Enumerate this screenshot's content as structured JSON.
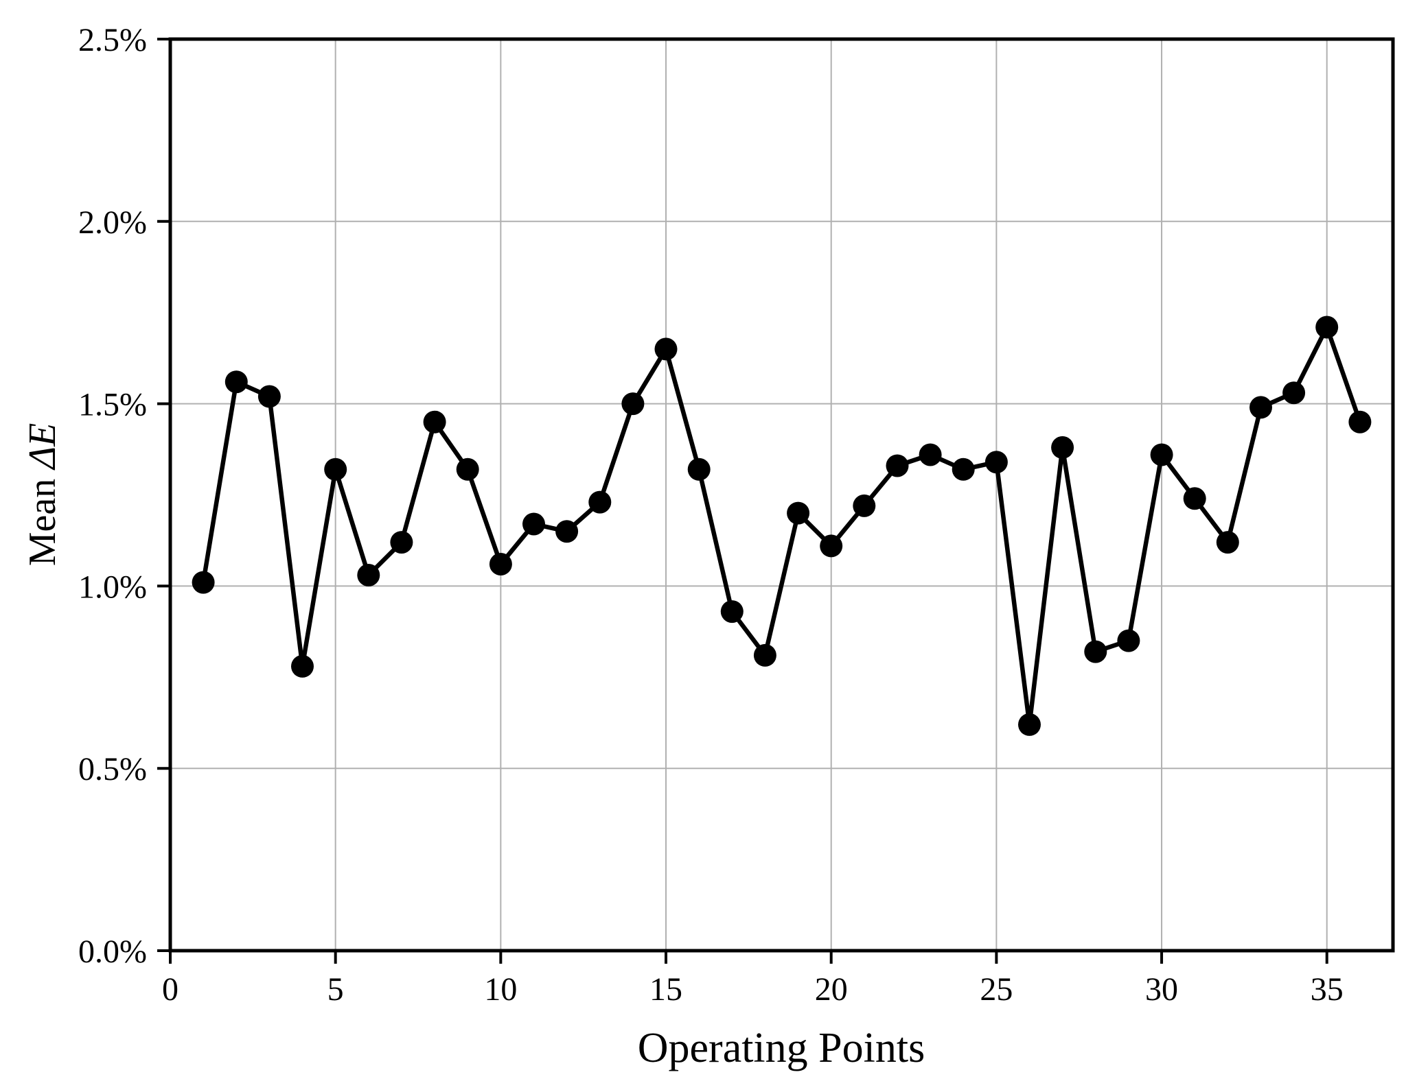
{
  "figure": {
    "background": "#ffffff"
  },
  "chart_data": {
    "type": "line",
    "title": "",
    "xlabel": "Operating Points",
    "ylabel": "Mean ΔE",
    "ylabel_prefix": "Mean ",
    "ylabel_italic": "ΔE",
    "x": [
      1,
      2,
      3,
      4,
      5,
      6,
      7,
      8,
      9,
      10,
      11,
      12,
      13,
      14,
      15,
      16,
      17,
      18,
      19,
      20,
      21,
      22,
      23,
      24,
      25,
      26,
      27,
      28,
      29,
      30,
      31,
      32,
      33,
      34,
      35,
      36
    ],
    "y": [
      1.01,
      1.56,
      1.52,
      0.78,
      1.32,
      1.03,
      1.12,
      1.45,
      1.32,
      1.06,
      1.17,
      1.15,
      1.23,
      1.5,
      1.65,
      1.32,
      0.93,
      0.81,
      1.2,
      1.11,
      1.22,
      1.33,
      1.36,
      1.32,
      1.34,
      0.62,
      1.38,
      0.82,
      0.85,
      1.36,
      1.24,
      1.12,
      1.49,
      1.53,
      1.71,
      1.45
    ],
    "y_unit": "%",
    "xlim": [
      0,
      37
    ],
    "ylim": [
      0,
      2.5
    ],
    "x_ticks": [
      0,
      5,
      10,
      15,
      20,
      25,
      30,
      35
    ],
    "x_tick_labels": [
      "0",
      "5",
      "10",
      "15",
      "20",
      "25",
      "30",
      "35"
    ],
    "y_ticks": [
      0,
      0.5,
      1.0,
      1.5,
      2.0,
      2.5
    ],
    "y_tick_labels": [
      "0.0%",
      "0.5%",
      "1.0%",
      "1.5%",
      "2.0%",
      "2.5%"
    ],
    "grid": true,
    "legend": false,
    "marker": "circle",
    "line_style": "solid",
    "colors": {
      "line": "#000000",
      "marker": "#000000",
      "grid": "#b0b0b0",
      "spine": "#000000",
      "tick": "#000000",
      "background": "#ffffff"
    }
  }
}
